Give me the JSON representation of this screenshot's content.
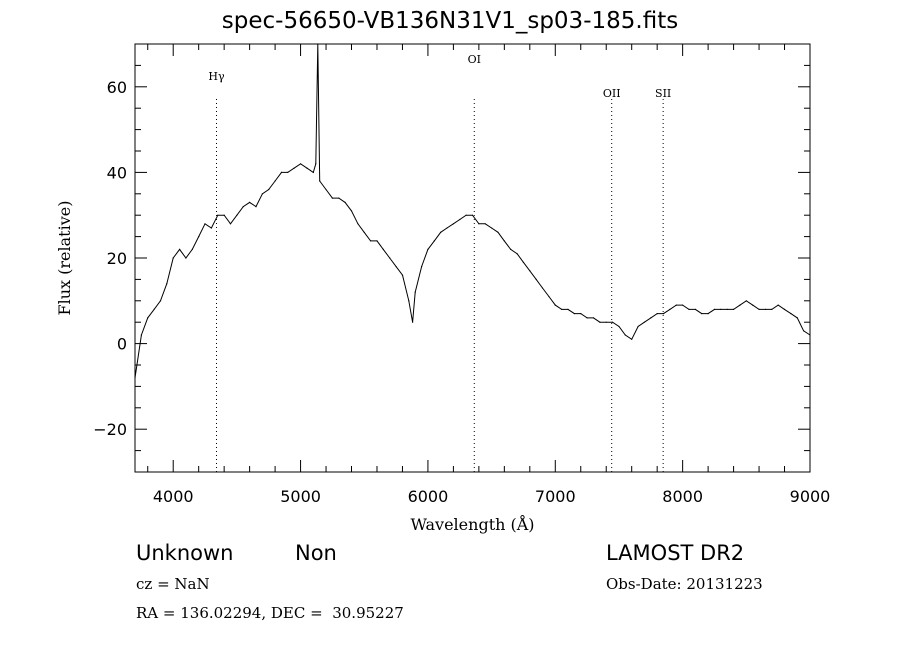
{
  "chart_data": {
    "type": "line",
    "title": "spec-56650-VB136N31V1_sp03-185.fits",
    "xlabel": "Wavelength (Å)",
    "ylabel": "Flux (relative)",
    "xlim": [
      3700,
      9000
    ],
    "ylim": [
      -30,
      70
    ],
    "xticks": [
      4000,
      5000,
      6000,
      7000,
      8000,
      9000
    ],
    "yticks": [
      -20,
      0,
      20,
      40,
      60
    ],
    "grid": false,
    "lines": [
      {
        "label": "Hγ",
        "x": 4340
      },
      {
        "label": "OI",
        "x": 6364
      },
      {
        "label": "OII",
        "x": 7443
      },
      {
        "label": "SII",
        "x": 7847
      }
    ],
    "series": [
      {
        "x": [
          3700,
          3750,
          3800,
          3850,
          3900,
          3950,
          4000,
          4050,
          4100,
          4150,
          4200,
          4250,
          4300,
          4350,
          4400,
          4450,
          4500,
          4550,
          4600,
          4650,
          4700,
          4750,
          4800,
          4850,
          4900,
          4950,
          5000,
          5050,
          5100,
          5120,
          5135,
          5150,
          5200,
          5250,
          5300,
          5350,
          5400,
          5450,
          5500,
          5550,
          5600,
          5650,
          5700,
          5750,
          5800,
          5850,
          5880,
          5900,
          5950,
          6000,
          6050,
          6100,
          6150,
          6200,
          6250,
          6300,
          6350,
          6400,
          6450,
          6500,
          6550,
          6600,
          6650,
          6700,
          6750,
          6800,
          6850,
          6900,
          6950,
          7000,
          7050,
          7100,
          7150,
          7200,
          7250,
          7300,
          7350,
          7400,
          7450,
          7500,
          7550,
          7600,
          7650,
          7700,
          7750,
          7800,
          7850,
          7900,
          7950,
          8000,
          8050,
          8100,
          8150,
          8200,
          8250,
          8300,
          8350,
          8400,
          8450,
          8500,
          8550,
          8600,
          8650,
          8700,
          8750,
          8800,
          8850,
          8900,
          8950,
          9000
        ],
        "y": [
          -8,
          2,
          6,
          8,
          10,
          14,
          20,
          22,
          20,
          22,
          25,
          28,
          27,
          30,
          30,
          28,
          30,
          32,
          33,
          32,
          35,
          36,
          38,
          40,
          40,
          41,
          42,
          41,
          40,
          42,
          70,
          38,
          36,
          34,
          34,
          33,
          31,
          28,
          26,
          24,
          24,
          22,
          20,
          18,
          16,
          10,
          5,
          12,
          18,
          22,
          24,
          26,
          27,
          28,
          29,
          30,
          30,
          28,
          28,
          27,
          26,
          24,
          22,
          21,
          19,
          17,
          15,
          13,
          11,
          9,
          8,
          8,
          7,
          7,
          6,
          6,
          5,
          5,
          5,
          4,
          2,
          1,
          4,
          5,
          6,
          7,
          7,
          8,
          9,
          9,
          8,
          8,
          7,
          7,
          8,
          8,
          8,
          8,
          9,
          10,
          9,
          8,
          8,
          8,
          9,
          8,
          7,
          6,
          3,
          2
        ]
      }
    ],
    "footer": {
      "class_text": "Unknown",
      "subclass_text": "Non",
      "survey": "LAMOST DR2",
      "cz": "cz = NaN",
      "obs_date": "Obs-Date: 20131223",
      "coords": "RA = 136.02294, DEC =  30.95227"
    }
  }
}
